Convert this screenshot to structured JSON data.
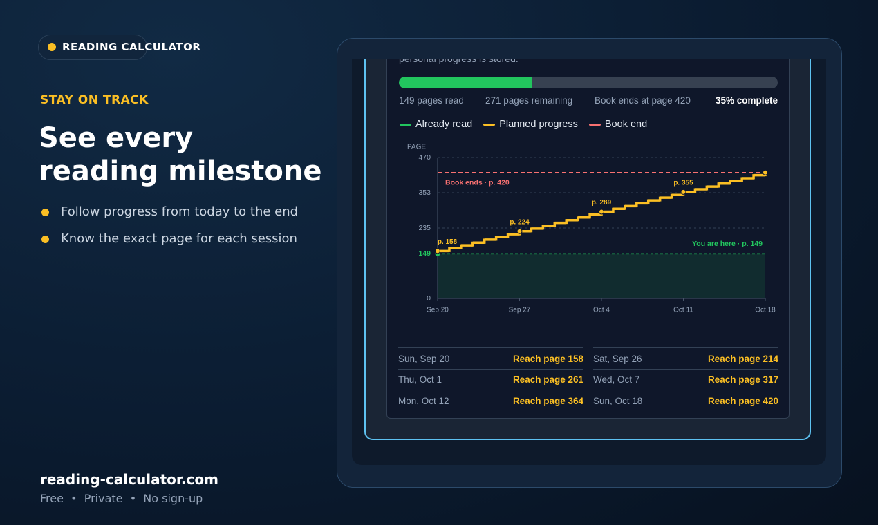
{
  "badge": "READING CALCULATOR",
  "eyebrow": "STAY ON TRACK",
  "heading": [
    "See every",
    "reading milestone"
  ],
  "bullets": [
    "Follow progress from today to the end",
    "Know the exact page for each session"
  ],
  "footer": {
    "site": "reading-calculator.com",
    "tags": [
      "Free",
      "Private",
      "No sign-up"
    ]
  },
  "app": {
    "intro": "personal progress is stored.",
    "progress": {
      "percent": 35,
      "label": "35% complete"
    },
    "stats": [
      "149 pages read",
      "271 pages remaining",
      "Book ends at page 420"
    ],
    "schedule": [
      {
        "date": "Sun, Sep 20",
        "goal": "Reach page 158"
      },
      {
        "date": "Sat, Sep 26",
        "goal": "Reach page 214"
      },
      {
        "date": "Thu, Oct 1",
        "goal": "Reach page 261"
      },
      {
        "date": "Wed, Oct 7",
        "goal": "Reach page 317"
      },
      {
        "date": "Mon, Oct 12",
        "goal": "Reach page 364"
      },
      {
        "date": "Sun, Oct 18",
        "goal": "Reach page 420"
      }
    ]
  },
  "chart_data": {
    "type": "line",
    "ylabel": "PAGE",
    "categories": [
      "Sep 20",
      null,
      null,
      null,
      null,
      null,
      null,
      "Sep 27",
      null,
      null,
      null,
      null,
      null,
      null,
      "Oct 4",
      null,
      null,
      null,
      null,
      null,
      null,
      "Oct 11",
      null,
      null,
      null,
      null,
      null,
      null,
      "Oct 18"
    ],
    "ylim": [
      0,
      470
    ],
    "yticks": [
      0,
      235,
      {
        "value": 352.5,
        "label": "353"
      },
      470
    ],
    "grid": true,
    "series": [
      {
        "name": "Already read",
        "color": "#22c55e",
        "value": 149,
        "label": "You are here · p. 149"
      },
      {
        "name": "Planned progress",
        "color": "#fbbf24",
        "values": [
          158,
          168,
          177,
          186,
          196,
          205,
          214,
          224,
          233,
          242,
          252,
          261,
          270,
          280,
          289,
          299,
          308,
          317,
          327,
          336,
          345,
          355,
          364,
          373,
          383,
          392,
          401,
          411,
          420
        ],
        "value_labels": [
          "p. 158",
          null,
          null,
          null,
          null,
          null,
          null,
          "p. 224",
          null,
          null,
          null,
          null,
          null,
          null,
          "p. 289",
          null,
          null,
          null,
          null,
          null,
          null,
          "p. 355",
          null,
          null,
          null,
          null,
          null,
          null,
          null
        ]
      },
      {
        "name": "Book end",
        "color": "#f87171",
        "value": 420,
        "label": "Book ends · p. 420"
      }
    ]
  }
}
